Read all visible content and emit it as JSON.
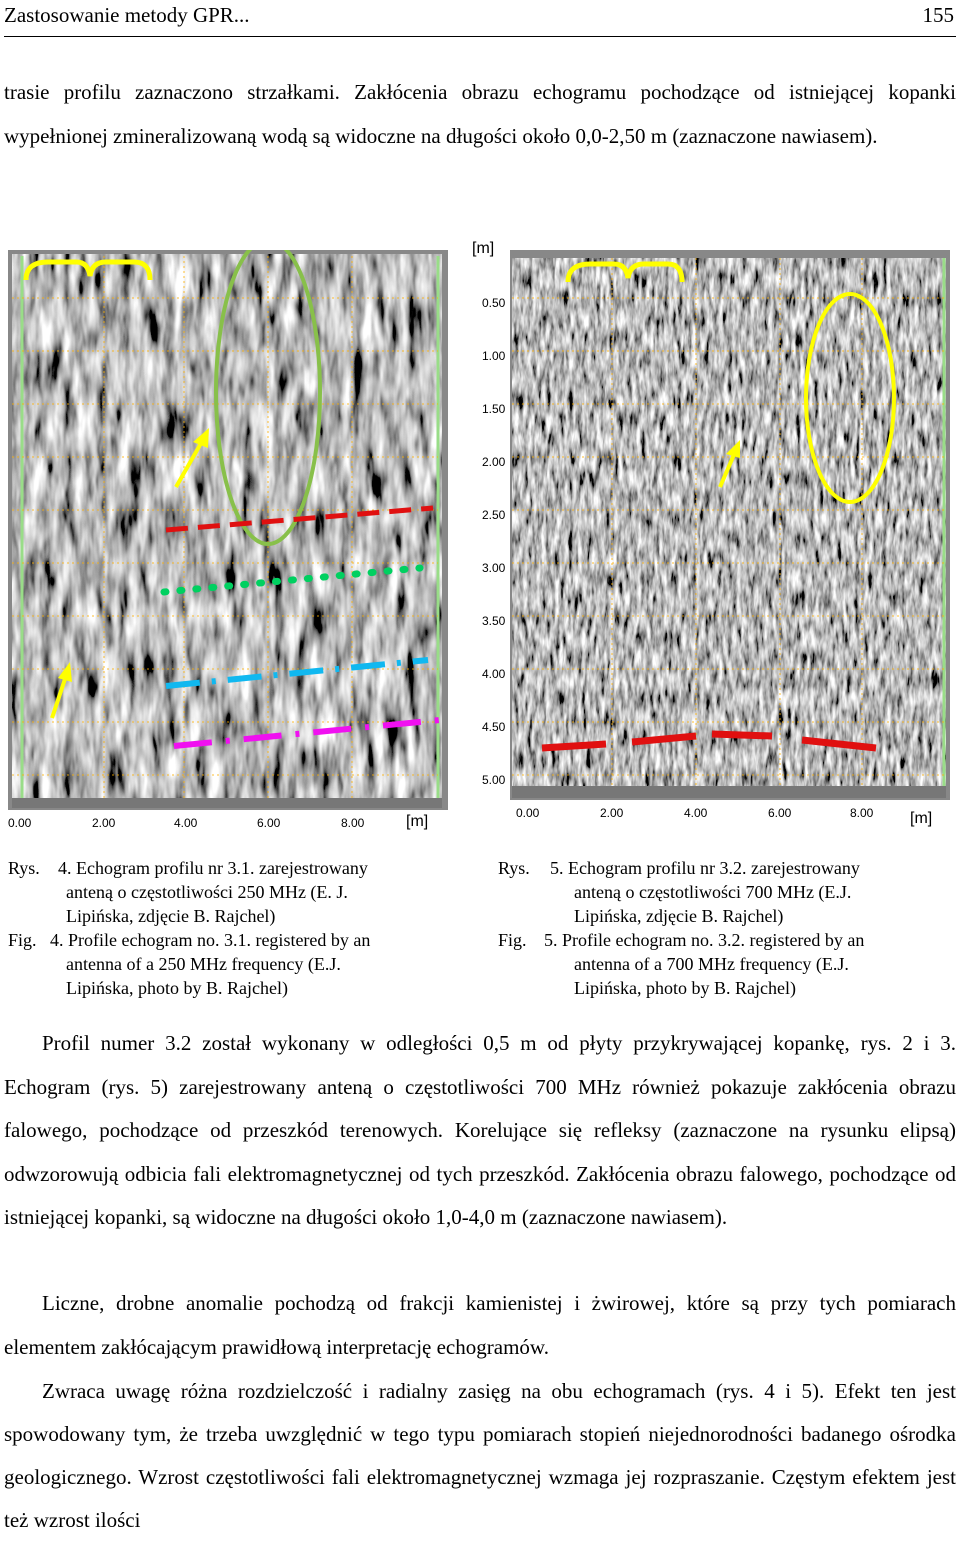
{
  "header": {
    "title": "Zastosowanie metody GPR...",
    "page_number": "155"
  },
  "paragraph_1": "trasie profilu zaznaczono strzałkami. Zakłócenia obrazu echogramu pochodzące od istniejącej kopanki wypełnionej zmineralizowaną wodą są widoczne na długości około 0,0-2,50 m (zaznaczone nawiasem).",
  "figure_axes": {
    "depth_unit": "[m]",
    "depth_ticks": [
      "0.50",
      "1.00",
      "1.50",
      "2.00",
      "2.50",
      "3.00",
      "3.50",
      "4.00",
      "4.50",
      "5.00"
    ],
    "distance_unit": "[m]",
    "distance_ticks_left": [
      "0.00",
      "2.00",
      "4.00",
      "6.00",
      "8.00"
    ],
    "distance_ticks_right": [
      "0.00",
      "2.00",
      "4.00",
      "6.00",
      "8.00"
    ],
    "right_unit": "[m]"
  },
  "annotation_colors": {
    "bracket": "#ffff00",
    "arrow": "#ffff00",
    "ellipse_left": "#88c04a",
    "ellipse_right": "#ffff00",
    "dash_red": "#e01010",
    "dots_green": "#00d060",
    "dash_cyan": "#10b8f0",
    "dash_magenta": "#f010f0",
    "frame_green": "#99dd88"
  },
  "caption_left": {
    "rys_label": "Rys.",
    "rys_line1": "4. Echogram profilu nr 3.1. zarejestrowany",
    "rys_line2": "anteną o częstotliwości 250 MHz (E. J.",
    "rys_line3": "Lipińska, zdjęcie B. Rajchel)",
    "fig_label": "Fig.",
    "fig_line1": "4. Profile echogram no. 3.1. registered by an",
    "fig_line2": "antenna of a 250 MHz frequency (E.J.",
    "fig_line3": "Lipińska, photo by B. Rajchel)"
  },
  "caption_right": {
    "rys_label": "Rys.",
    "rys_line1": "5. Echogram profilu nr 3.2. zarejestrowany",
    "rys_line2": "anteną o częstotliwości 700 MHz (E.J.",
    "rys_line3": "Lipińska, zdjęcie B. Rajchel)",
    "fig_label": "Fig.",
    "fig_line1": "5. Profile echogram no. 3.2. registered by an",
    "fig_line2": "antenna of a 700 MHz frequency (E.J.",
    "fig_line3": "Lipińska, photo by B. Rajchel)"
  },
  "paragraph_2": "Profil numer 3.2 został wykonany w odległości 0,5 m od płyty przykrywającej kopankę, rys. 2 i 3. Echogram (rys. 5) zarejestrowany anteną o częstotliwości 700 MHz również pokazuje zakłócenia obrazu falowego, pochodzące od przeszkód terenowych. Korelujące się refleksy (zaznaczone na rysunku elipsą) odwzorowują odbicia fali elektromagnetycznej od tych przeszkód. Zakłócenia obrazu falowego, pochodzące od istniejącej kopanki, są widoczne na długości około 1,0-4,0 m (zaznaczone nawiasem).",
  "paragraph_3": "Liczne, drobne anomalie pochodzą od frakcji kamienistej i żwirowej, które są przy tych pomiarach elementem zakłócającym prawidłową interpretację echogramów.",
  "paragraph_4": "Zwraca uwagę różna rozdzielczość i radialny zasięg na obu echogramach (rys. 4 i 5). Efekt ten jest spowodowany tym, że trzeba uwzględnić w tego typu pomiarach stopień niejednorodności badanego ośrodka geologicznego. Wzrost częstotliwości fali elektromagnetycznej wzmaga jej rozpraszanie. Częstym efektem jest też wzrost ilości"
}
